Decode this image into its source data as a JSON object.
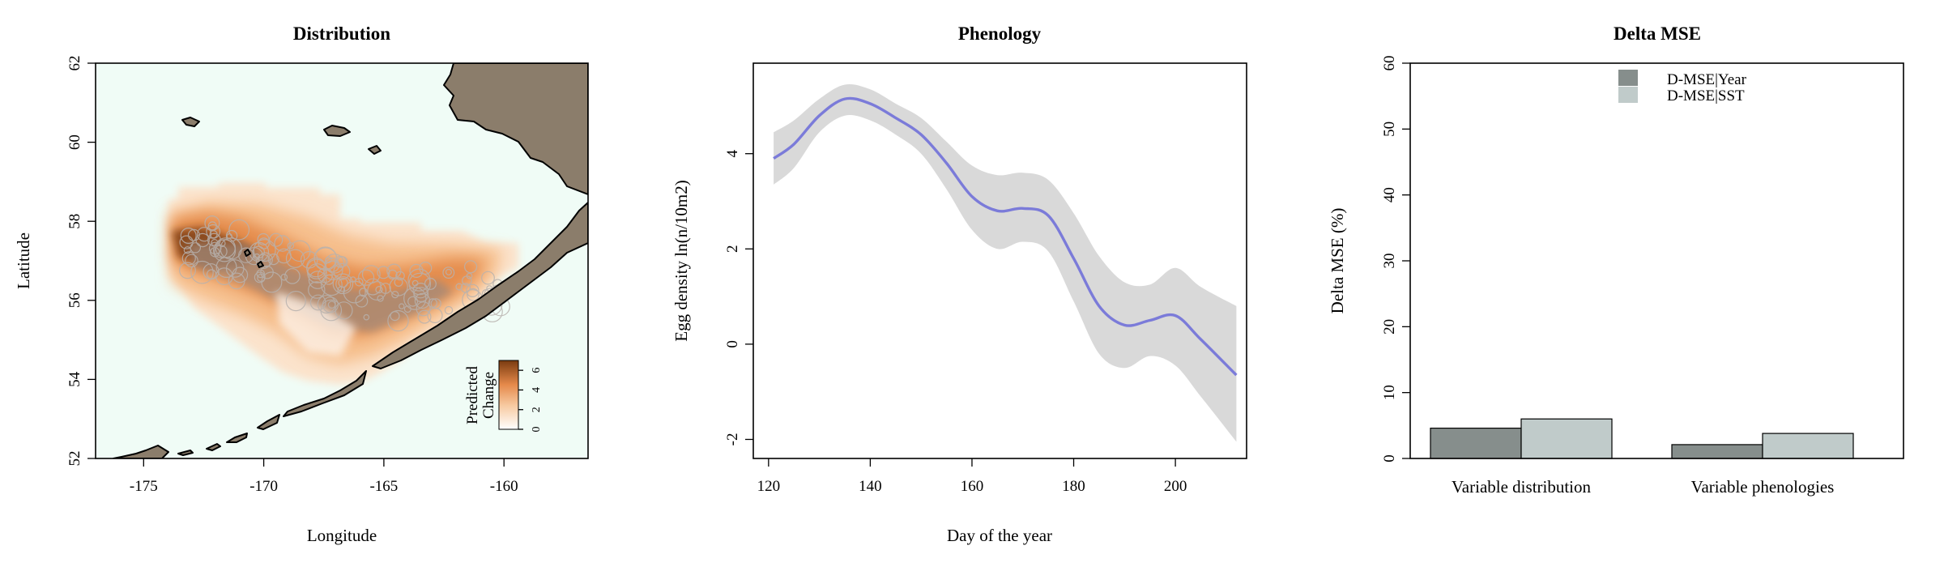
{
  "charts": [
    {
      "title": "Distribution",
      "xlabel": "Longitude",
      "ylabel": "Latitude",
      "xticks": [
        "-175",
        "-170",
        "-165",
        "-160"
      ],
      "yticks": [
        "52",
        "54",
        "56",
        "58",
        "60",
        "62"
      ],
      "legend": {
        "label_line1": "Predicted",
        "label_line2": "Change",
        "ticks": [
          "0",
          "2",
          "4",
          "6"
        ]
      }
    },
    {
      "title": "Phenology",
      "xlabel": "Day of the year",
      "ylabel": "Egg density ln(n/10m2)",
      "xticks": [
        "120",
        "140",
        "160",
        "180",
        "200"
      ],
      "yticks": [
        "-2",
        "0",
        "2",
        "4"
      ]
    },
    {
      "title": "Delta MSE",
      "xlabel": "",
      "ylabel": "Delta MSE (%)",
      "yticks": [
        "0",
        "10",
        "20",
        "30",
        "40",
        "50",
        "60"
      ],
      "categories": [
        "Variable distribution",
        "Variable phenologies"
      ],
      "legend": [
        "D-MSE|Year",
        "D-MSE|SST"
      ]
    }
  ],
  "colors": {
    "land": "#8b7d6b",
    "ocean": "#f0fcf6",
    "curve": "#7b7bd9",
    "ribbon": "#d9d9d9",
    "bar_year": "#868e8c",
    "bar_sst": "#c0cbca",
    "heat_low": "#ffffff",
    "heat_high": "#8b4513"
  },
  "chart_data": [
    {
      "type": "heatmap",
      "title": "Distribution",
      "xlabel": "Longitude",
      "ylabel": "Latitude",
      "xlim": [
        -177,
        -156.5
      ],
      "ylim": [
        52,
        62
      ],
      "colorbar": {
        "label": "Predicted Change",
        "range": [
          0,
          7
        ],
        "ticks": [
          0,
          2,
          4,
          6
        ]
      },
      "predicted_change": [
        {
          "lon": -172.8,
          "lat": 57.0,
          "value": 6.5
        },
        {
          "lon": -171.5,
          "lat": 56.8,
          "value": 5.5
        },
        {
          "lon": -170.0,
          "lat": 56.6,
          "value": 4.5
        },
        {
          "lon": -168.5,
          "lat": 56.3,
          "value": 4.0
        },
        {
          "lon": -167.0,
          "lat": 55.8,
          "value": 3.5
        },
        {
          "lon": -165.5,
          "lat": 55.5,
          "value": 4.0
        },
        {
          "lon": -164.0,
          "lat": 55.9,
          "value": 4.5
        },
        {
          "lon": -162.5,
          "lat": 56.5,
          "value": 4.0
        },
        {
          "lon": -161.0,
          "lat": 56.9,
          "value": 3.0
        },
        {
          "lon": -165.0,
          "lat": 58.3,
          "value": 1.5
        },
        {
          "lon": -168.0,
          "lat": 54.8,
          "value": 0.5
        }
      ]
    },
    {
      "type": "line",
      "title": "Phenology",
      "xlabel": "Day of the year",
      "ylabel": "Egg density ln(n/10m2)",
      "xlim": [
        117,
        214
      ],
      "ylim": [
        -2.4,
        5.9
      ],
      "x": [
        121,
        125,
        130,
        135,
        140,
        145,
        150,
        155,
        160,
        165,
        170,
        175,
        180,
        185,
        190,
        195,
        200,
        205,
        212
      ],
      "y": [
        3.9,
        4.2,
        4.8,
        5.15,
        5.05,
        4.75,
        4.4,
        3.8,
        3.1,
        2.8,
        2.85,
        2.7,
        1.8,
        0.8,
        0.4,
        0.5,
        0.6,
        0.1,
        -0.65
      ],
      "lower": [
        3.35,
        3.7,
        4.45,
        4.8,
        4.7,
        4.4,
        4.0,
        3.25,
        2.4,
        2.0,
        2.15,
        1.95,
        0.9,
        -0.2,
        -0.5,
        -0.25,
        -0.45,
        -1.1,
        -2.05
      ],
      "upper": [
        4.45,
        4.7,
        5.15,
        5.45,
        5.35,
        5.05,
        4.75,
        4.25,
        3.75,
        3.55,
        3.6,
        3.45,
        2.75,
        1.85,
        1.3,
        1.25,
        1.6,
        1.2,
        0.8
      ],
      "grid": false
    },
    {
      "type": "bar",
      "title": "Delta MSE",
      "ylabel": "Delta MSE (%)",
      "ylim": [
        0,
        60
      ],
      "categories": [
        "Variable distribution",
        "Variable phenologies"
      ],
      "series": [
        {
          "name": "D-MSE|Year",
          "values": [
            4.6,
            2.1
          ]
        },
        {
          "name": "D-MSE|SST",
          "values": [
            6.0,
            3.8
          ]
        }
      ],
      "legend_position": "top-right",
      "grid": false
    }
  ]
}
